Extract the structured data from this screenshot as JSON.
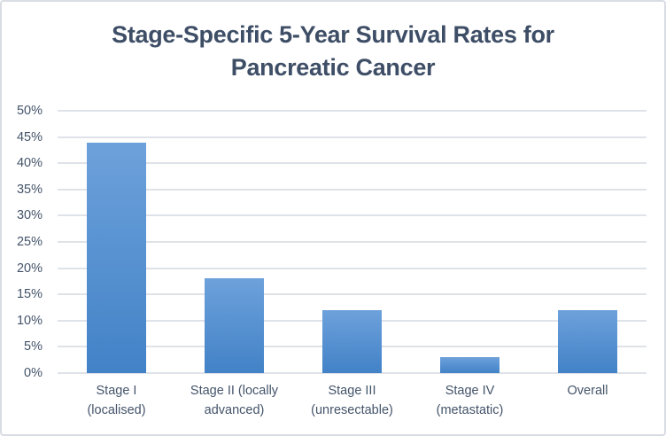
{
  "colors": {
    "background": "#ffffff",
    "chart_border": "#d9dde3",
    "gridline": "#dfe3e9",
    "title_text": "#3e4e66",
    "axis_text": "#44546a",
    "bar_gradient_top": "#6da1db",
    "bar_gradient_bottom": "#4282c7"
  },
  "chart_data": {
    "type": "bar",
    "title": "Stage-Specific 5-Year Survival Rates for Pancreatic Cancer",
    "xlabel": "",
    "ylabel": "",
    "unit": "%",
    "categories": [
      "Stage I (localised)",
      "Stage II (locally advanced)",
      "Stage III (unresectable)",
      "Stage IV (metastatic)",
      "Overall"
    ],
    "category_label_lines": [
      [
        "Stage I",
        "(localised)"
      ],
      [
        "Stage II (locally",
        "advanced)"
      ],
      [
        "Stage III",
        "(unresectable)"
      ],
      [
        "Stage IV",
        "(metastatic)"
      ],
      [
        "Overall"
      ]
    ],
    "values": [
      44,
      18,
      12,
      3,
      12
    ],
    "ylim": [
      0,
      50
    ],
    "y_tick_step": 5,
    "y_tick_labels": [
      "0%",
      "5%",
      "10%",
      "15%",
      "20%",
      "25%",
      "30%",
      "35%",
      "40%",
      "45%",
      "50%"
    ],
    "grid": true,
    "legend": false
  }
}
